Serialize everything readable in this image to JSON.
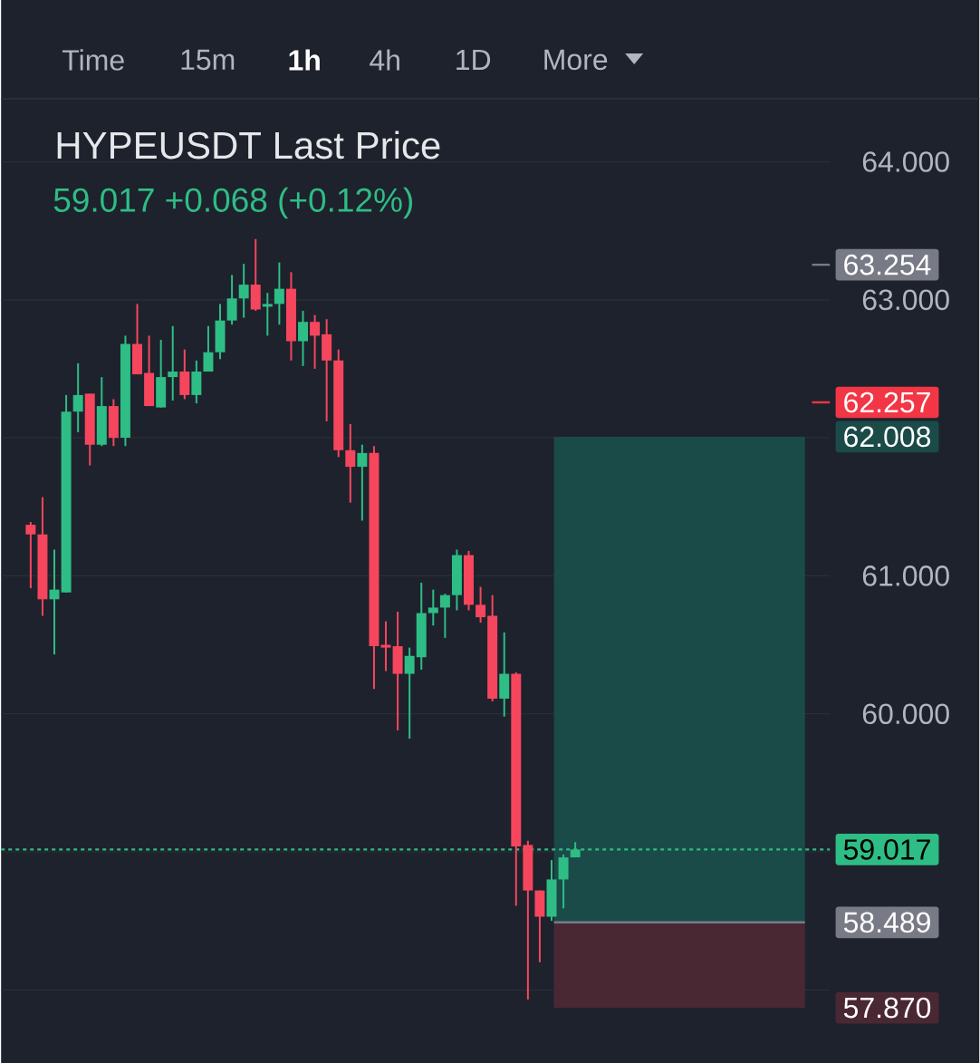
{
  "chart_data": {
    "type": "candlestick",
    "title": "HYPEUSDT Last Price",
    "subtitle": "59.017  +0.068 (+0.12%)",
    "annotations": [
      "Time",
      "15m",
      "1h",
      "4h",
      "1D",
      "More"
    ],
    "categories": [
      null,
      null,
      null,
      null,
      null,
      null,
      null,
      null,
      null,
      null,
      null,
      null,
      null,
      null,
      null,
      null,
      null,
      null,
      null,
      null,
      null,
      null,
      null,
      null,
      null,
      null,
      null,
      null,
      null,
      null,
      null,
      null,
      null,
      null,
      null,
      null,
      null,
      null,
      null,
      null,
      null,
      null,
      null,
      null,
      null,
      null,
      null,
      null,
      null,
      null,
      null,
      null,
      null,
      null,
      null,
      null,
      null,
      null,
      null,
      null,
      null,
      null,
      null,
      null,
      null,
      null,
      null,
      null,
      null,
      null
    ],
    "ohlc": [
      null,
      null,
      [
        61.37,
        61.39,
        60.91,
        61.3
      ],
      [
        61.3,
        61.57,
        60.71,
        60.83
      ],
      [
        60.83,
        61.19,
        60.43,
        60.9
      ],
      [
        60.88,
        62.31,
        60.88,
        62.19
      ],
      [
        62.19,
        62.54,
        62.04,
        62.31
      ],
      [
        62.32,
        62.32,
        61.8,
        61.95
      ],
      [
        61.95,
        62.44,
        61.94,
        62.23
      ],
      [
        62.23,
        62.28,
        61.94,
        62.0
      ],
      [
        62.0,
        62.74,
        61.94,
        62.68
      ],
      [
        62.68,
        62.97,
        62.46,
        62.46
      ],
      [
        62.47,
        62.74,
        62.23,
        62.23
      ],
      [
        62.22,
        62.71,
        62.22,
        62.44
      ],
      [
        62.44,
        62.81,
        62.27,
        62.48
      ],
      [
        62.48,
        62.64,
        62.28,
        62.31
      ],
      [
        62.31,
        62.56,
        62.25,
        62.48
      ],
      [
        62.48,
        62.81,
        62.48,
        62.62
      ],
      [
        62.62,
        62.97,
        62.57,
        62.85
      ],
      [
        62.85,
        63.18,
        62.82,
        63.01
      ],
      [
        63.01,
        63.26,
        62.87,
        63.11
      ],
      [
        63.11,
        63.44,
        62.92,
        62.93
      ],
      [
        62.95,
        63.05,
        62.74,
        62.97
      ],
      [
        62.97,
        63.27,
        62.82,
        63.08
      ],
      [
        63.08,
        63.2,
        62.56,
        62.7
      ],
      [
        62.7,
        62.92,
        62.52,
        62.84
      ],
      [
        62.84,
        62.89,
        62.5,
        62.74
      ],
      [
        62.75,
        62.86,
        62.12,
        62.56
      ],
      [
        62.56,
        62.64,
        61.86,
        61.91
      ],
      [
        61.91,
        62.1,
        61.53,
        61.79
      ],
      [
        61.79,
        61.95,
        61.4,
        61.89
      ],
      [
        61.89,
        61.94,
        60.18,
        60.49
      ],
      [
        60.5,
        60.67,
        60.31,
        60.48
      ],
      [
        60.49,
        60.74,
        59.88,
        60.29
      ],
      [
        60.29,
        60.48,
        59.82,
        60.42
      ],
      [
        60.41,
        60.95,
        60.32,
        60.73
      ],
      [
        60.73,
        60.9,
        60.64,
        60.77
      ],
      [
        60.77,
        60.87,
        60.55,
        60.86
      ],
      [
        60.86,
        61.19,
        60.75,
        61.15
      ],
      [
        61.15,
        61.18,
        60.75,
        60.79
      ],
      [
        60.79,
        60.92,
        60.66,
        60.7
      ],
      [
        60.71,
        60.86,
        60.09,
        60.11
      ],
      [
        60.11,
        60.59,
        59.98,
        60.29
      ],
      [
        60.29,
        60.3,
        58.61,
        59.04
      ],
      [
        59.05,
        59.08,
        57.93,
        58.72
      ],
      [
        58.72,
        58.72,
        58.2,
        58.53
      ],
      [
        58.53,
        58.94,
        58.5,
        58.8
      ],
      [
        58.8,
        58.98,
        58.59,
        58.96
      ],
      [
        58.96,
        59.07,
        58.96,
        59.017
      ],
      null,
      null,
      null,
      null,
      null,
      null,
      null,
      null,
      null,
      null,
      null,
      null,
      null,
      null,
      null,
      null,
      null,
      null,
      null,
      null,
      null
    ],
    "colors": [
      null,
      null,
      "#f6465d",
      "#f6465d",
      "#2ebd85",
      "#2ebd85",
      "#2ebd85",
      "#f6465d",
      "#2ebd85",
      "#f6465d",
      "#2ebd85",
      "#f6465d",
      "#f6465d",
      "#2ebd85",
      "#2ebd85",
      "#f6465d",
      "#2ebd85",
      "#2ebd85",
      "#2ebd85",
      "#2ebd85",
      "#2ebd85",
      "#f6465d",
      "#2ebd85",
      "#2ebd85",
      "#f6465d",
      "#2ebd85",
      "#f6465d",
      "#f6465d",
      "#f6465d",
      "#f6465d",
      "#2ebd85",
      "#f6465d",
      "#f6465d",
      "#f6465d",
      "#2ebd85",
      "#2ebd85",
      "#2ebd85",
      "#2ebd85",
      "#2ebd85",
      "#f6465d",
      "#f6465d",
      "#f6465d",
      "#2ebd85",
      "#f6465d",
      "#f6465d",
      "#f6465d",
      "#2ebd85",
      "#2ebd85",
      "#2ebd85",
      null,
      null,
      null,
      null,
      null,
      null,
      null,
      null,
      null,
      null,
      null,
      null,
      null,
      null,
      null,
      null,
      null,
      null,
      null,
      null,
      null
    ],
    "ylim": [
      57.47,
      64.45
    ],
    "yticks": [
      {
        "value": 58,
        "label": null
      },
      {
        "value": 59,
        "label": null
      },
      {
        "value": 60,
        "label": "60.000"
      },
      {
        "value": 61,
        "label": "61.000"
      },
      {
        "value": 62,
        "label": null
      },
      {
        "value": 63,
        "label": "63.000"
      },
      {
        "value": 64,
        "label": "64.000"
      }
    ],
    "grid": "y",
    "tick_labels": "y",
    "ref_lines": [
      {
        "axis": "y",
        "value": 59.017,
        "label": "59.017",
        "color": "#2ebd85",
        "line_style": "dotted"
      },
      {
        "axis": "y",
        "value": 58.489,
        "label": "58.489",
        "color": "#787b86",
        "line_style": "solid"
      },
      {
        "axis": "y",
        "value": 63.254,
        "label": "63.254",
        "color": "#787b86",
        "line_style": "solid"
      },
      {
        "axis": "y",
        "value": 62.257,
        "label": "62.257",
        "color": "#f23645",
        "line_style": "solid"
      }
    ],
    "bands": [
      {
        "axis": "y",
        "from": 58.489,
        "to": 62.008,
        "label": "62.008",
        "color": "#1b4b48"
      },
      {
        "axis": "y",
        "from": 57.87,
        "to": 58.489,
        "label": "57.870",
        "color": "#4a2833"
      }
    ]
  }
}
